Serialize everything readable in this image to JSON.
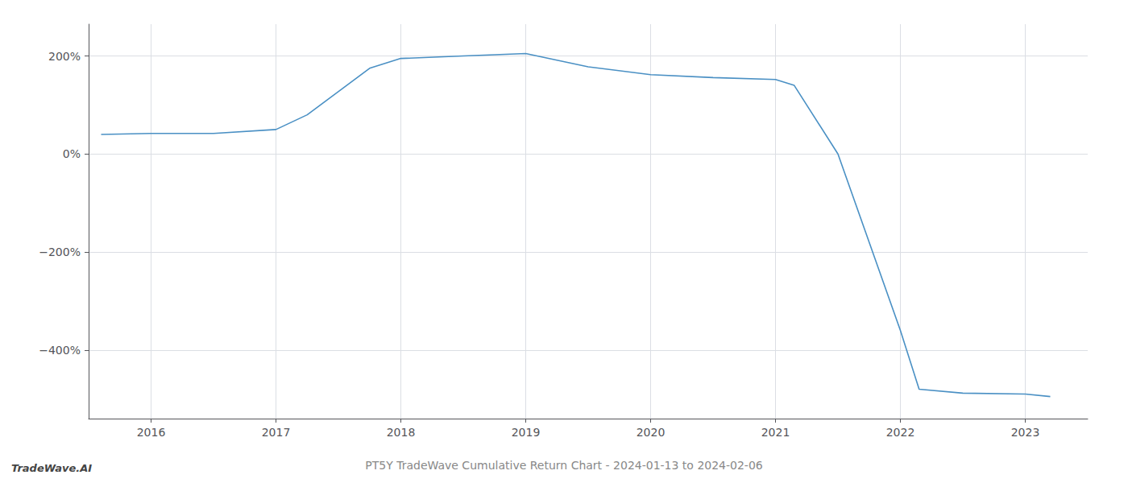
{
  "chart_data": {
    "type": "line",
    "title": "PT5Y TradeWave Cumulative Return Chart - 2024-01-13 to 2024-02-06",
    "annotations": [
      "TradeWave.AI"
    ],
    "x": [
      2015.6,
      2016.0,
      2016.5,
      2017.0,
      2017.25,
      2017.75,
      2018.0,
      2018.5,
      2019.0,
      2019.5,
      2020.0,
      2020.5,
      2021.0,
      2021.15,
      2021.5,
      2022.0,
      2022.15,
      2022.5,
      2023.0,
      2023.2
    ],
    "values": [
      40,
      42,
      42,
      50,
      80,
      175,
      195,
      200,
      205,
      178,
      162,
      156,
      152,
      140,
      0,
      -360,
      -480,
      -488,
      -490,
      -495
    ],
    "color": "#4a90c4",
    "xlim": [
      2015.5,
      2023.5
    ],
    "ylim": [
      -540,
      265
    ],
    "xticks": [
      2016,
      2017,
      2018,
      2019,
      2020,
      2021,
      2022,
      2023
    ],
    "yticks": [
      {
        "value": 200,
        "label": "200%"
      },
      {
        "value": 0,
        "label": "0%"
      },
      {
        "value": -200,
        "label": "−200%"
      },
      {
        "value": -400,
        "label": "−400%"
      }
    ],
    "grid": true
  }
}
